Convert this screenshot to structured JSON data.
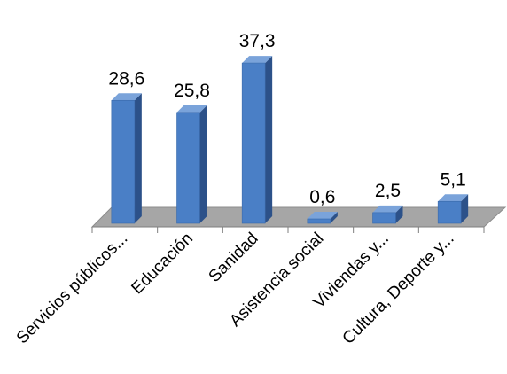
{
  "chart_data": {
    "type": "bar",
    "three_d": true,
    "categories": [
      "Servicios públicos...",
      "Educación",
      "Sanidad",
      "Asistencia social",
      "Viviendas y...",
      "Cultura, Deporte y..."
    ],
    "values": [
      28.6,
      25.8,
      37.3,
      0.6,
      2.5,
      5.1
    ],
    "data_labels": [
      "28,6",
      "25,8",
      "37,3",
      "0,6",
      "2,5",
      "5,1"
    ],
    "ylim": [
      0,
      40
    ],
    "grid": false,
    "legend": "none",
    "colors": {
      "bar_front": "#4a7fc6",
      "bar_side": "#2c5189",
      "bar_top": "#7aa3da",
      "floor": "#a6a6a6",
      "floor_edge": "#8c8c8c",
      "axis": "#7f7f7f"
    }
  }
}
